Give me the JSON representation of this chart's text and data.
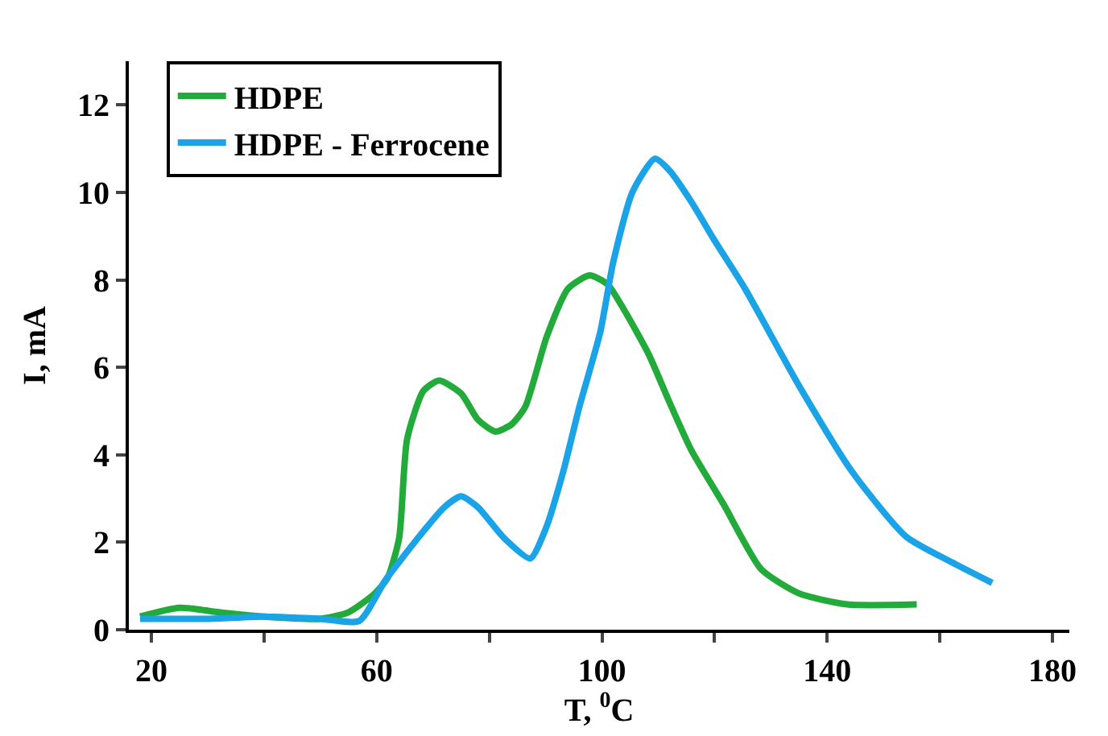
{
  "chart_data": {
    "type": "line",
    "xlabel": "T, $^{0}$C",
    "ylabel": "I, mA",
    "xlim": [
      16,
      183
    ],
    "xticks": [
      20,
      {
        "value": 40,
        "label": null
      },
      60,
      {
        "value": 80,
        "label": null
      },
      100,
      {
        "value": 120,
        "label": null
      },
      140,
      {
        "value": 160,
        "label": null
      },
      180
    ],
    "ylim": [
      0,
      13
    ],
    "yticks": [
      0,
      2,
      4,
      6,
      8,
      10,
      12
    ],
    "grid": false,
    "legend": "top left",
    "marker": "none",
    "line_style": "solid",
    "series": [
      {
        "name": "HDPE",
        "color": "#22ab3a",
        "x": [
          18,
          25,
          32,
          40,
          50,
          55,
          59.7,
          62,
          64,
          65.4,
          68.3,
          71.1,
          75,
          78,
          81.1,
          84,
          86.4,
          90.2,
          94,
          97.8,
          101,
          104,
          108.3,
          112,
          115.9,
          121.6,
          128.3,
          135,
          143.5,
          155.9
        ],
        "values": [
          0.3,
          0.5,
          0.4,
          0.3,
          0.25,
          0.4,
          0.83,
          1.2,
          2.1,
          4.35,
          5.46,
          5.7,
          5.4,
          4.8,
          4.53,
          4.7,
          5.1,
          6.7,
          7.8,
          8.1,
          7.9,
          7.3,
          6.3,
          5.2,
          4.1,
          2.87,
          1.38,
          0.83,
          0.58,
          0.58
        ]
      },
      {
        "name": "HDPE - Ferrocene",
        "color": "#1aa3e6",
        "x": [
          18,
          30,
          40,
          50,
          56.9,
          61.6,
          68.3,
          72,
          75,
          78,
          82.6,
          87.3,
          90,
          93.1,
          96,
          99.7,
          102,
          105.4,
          109.4,
          112,
          115.9,
          120,
          125.4,
          135,
          144.5,
          154,
          162,
          169.3
        ],
        "values": [
          0.25,
          0.25,
          0.3,
          0.25,
          0.2,
          1.14,
          2.25,
          2.8,
          3.05,
          2.8,
          2.1,
          1.63,
          2.3,
          3.6,
          5.1,
          6.8,
          8.4,
          10.0,
          10.77,
          10.5,
          9.78,
          8.9,
          7.8,
          5.58,
          3.6,
          2.13,
          1.55,
          1.07
        ]
      }
    ]
  }
}
